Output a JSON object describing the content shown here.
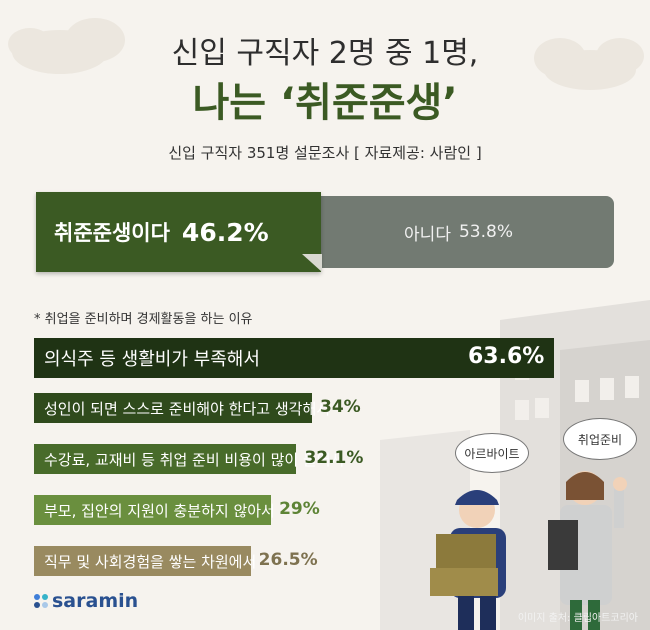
{
  "header": {
    "title_line1": "신입 구직자 2명 중 1명,",
    "title_line2": "나는 ‘취준준생’",
    "subtitle": "신입 구직자 351명 설문조사 [ 자료제공: 사람인 ]"
  },
  "split": {
    "yes_label": "취준준생이다",
    "yes_value": "46.2%",
    "yes_pct": 46.2,
    "no_label": "아니다",
    "no_value": "53.8%",
    "no_pct": 53.8
  },
  "note": "* 취업을 준비하며 경제활동을 하는 이유",
  "chart_data": {
    "type": "bar",
    "title": "* 취업을 준비하며 경제활동을 하는 이유",
    "categories": [
      "의식주 등 생활비가 부족해서",
      "성인이 되면 스스로 준비해야 한다고 생각해서",
      "수강료, 교재비 등 취업 준비 비용이 많이 들어서",
      "부모, 집안의 지원이 충분하지 않아서",
      "직무 및 사회경험을 쌓는 차원에서"
    ],
    "values": [
      63.6,
      34,
      32.1,
      29,
      26.5
    ],
    "value_labels": [
      "63.6%",
      "34%",
      "32.1%",
      "29%",
      "26.5%"
    ],
    "colors": [
      "#1f3314",
      "#2f4a1c",
      "#486b2a",
      "#6a8f3e",
      "#998a60"
    ],
    "value_colors": [
      "#ffffff",
      "#3b5a23",
      "#3b5a23",
      "#5e8436",
      "#7e7250"
    ]
  },
  "bubbles": {
    "left": "아르바이트",
    "right": "취업준비"
  },
  "brand": {
    "name": "saramin",
    "dot_colors": [
      "#3f7ed8",
      "#36b3c9",
      "#2a5190",
      "#a9c8e8"
    ]
  },
  "credit": "이미지 출처: 클립아트코리아"
}
